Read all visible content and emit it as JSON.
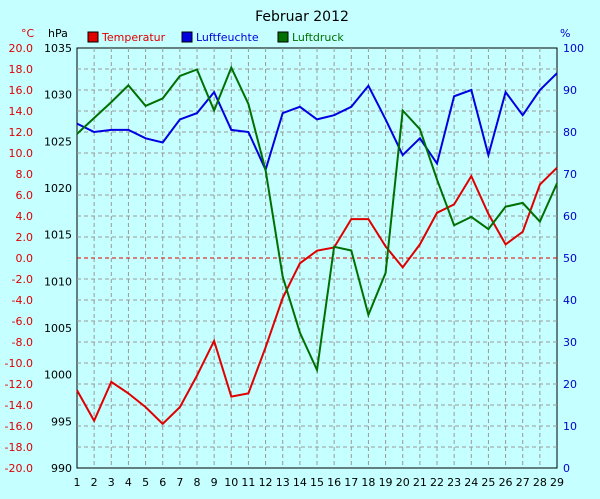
{
  "chart_data": {
    "type": "line",
    "title": "Februar 2012",
    "left_axis_unit_1": "°C",
    "left_axis_unit_2": "hPa",
    "right_axis_unit": "%",
    "x": [
      1,
      2,
      3,
      4,
      5,
      6,
      7,
      8,
      9,
      10,
      11,
      12,
      13,
      14,
      15,
      16,
      17,
      18,
      19,
      20,
      21,
      22,
      23,
      24,
      25,
      26,
      27,
      28,
      29
    ],
    "xlim": [
      1,
      29
    ],
    "temperature_axis": {
      "min": -20,
      "max": 20,
      "step": 2
    },
    "pressure_axis": {
      "min": 990,
      "max": 1035,
      "step": 5
    },
    "humidity_axis": {
      "min": 0,
      "max": 100,
      "step": 10
    },
    "grid": true,
    "legend_position": "top",
    "series": [
      {
        "name": "Temperatur",
        "axis": "temperature",
        "color": "#e00000",
        "values": [
          -12.6,
          -15.5,
          -11.8,
          -12.9,
          -14.2,
          -15.8,
          -14.2,
          -11.2,
          -7.9,
          -13.2,
          -12.9,
          -8.5,
          -3.8,
          -0.5,
          0.7,
          1.0,
          3.7,
          3.7,
          1.1,
          -0.9,
          1.3,
          4.3,
          5.1,
          7.8,
          4.2,
          1.3,
          2.5,
          7.0,
          8.6
        ]
      },
      {
        "name": "Luftfeuchte",
        "axis": "humidity",
        "color": "#0000e0",
        "values": [
          82,
          80,
          80.5,
          80.5,
          78.5,
          77.5,
          83,
          84.5,
          89.5,
          80.5,
          80,
          71,
          84.5,
          86,
          83,
          84,
          86,
          91,
          83,
          74.5,
          78.5,
          72.5,
          88.5,
          90,
          74.5,
          89.5,
          84,
          90,
          94
        ]
      },
      {
        "name": "Luftdruck",
        "axis": "pressure",
        "color": "#007000",
        "values": [
          1025.8,
          1027.5,
          1029.2,
          1031.0,
          1028.8,
          1029.6,
          1032.0,
          1032.7,
          1028.3,
          1032.9,
          1029.0,
          1021.9,
          1010.5,
          1004.5,
          1000.5,
          1013.7,
          1013.3,
          1006.4,
          1010.9,
          1028.3,
          1026.3,
          1020.9,
          1016.0,
          1016.9,
          1015.6,
          1018.0,
          1018.4,
          1016.4,
          1020.5
        ]
      }
    ]
  }
}
